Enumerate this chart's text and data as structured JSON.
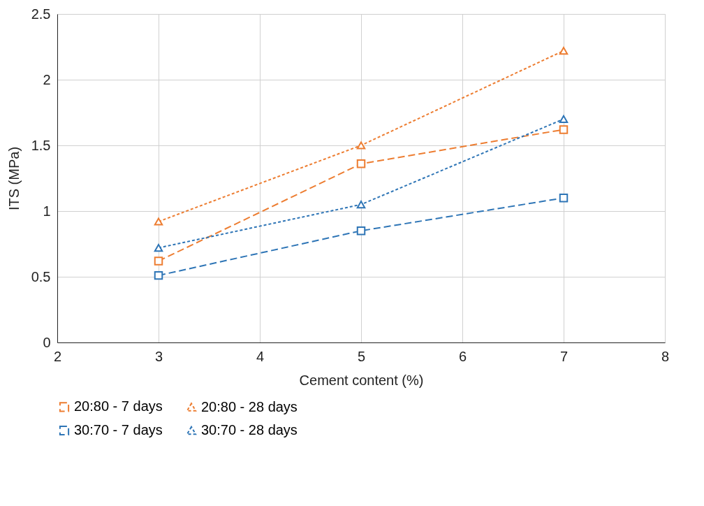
{
  "chart_data": {
    "type": "line",
    "xlabel": "Cement content (%)",
    "ylabel": "ITS (MPa)",
    "xlim": [
      2,
      8
    ],
    "xticks": [
      2,
      3,
      4,
      5,
      6,
      7,
      8
    ],
    "ylim": [
      0,
      2.5
    ],
    "yticks": [
      0,
      0.5,
      1,
      1.5,
      2,
      2.5
    ],
    "grid": true,
    "legend": "bottom",
    "series": [
      {
        "name": "20:80 - 7 days",
        "color": "#ed7d31",
        "x": [
          3,
          5,
          7
        ],
        "values": [
          0.62,
          1.36,
          1.62
        ],
        "marker": "square",
        "line_style": "dashed"
      },
      {
        "name": "20:80 - 28 days",
        "color": "#ed7d31",
        "x": [
          3,
          5,
          7
        ],
        "values": [
          0.92,
          1.5,
          2.22
        ],
        "marker": "triangle",
        "line_style": "dotted"
      },
      {
        "name": "30:70 - 7 days",
        "color": "#2e75b6",
        "x": [
          3,
          5,
          7
        ],
        "values": [
          0.51,
          0.85,
          1.1
        ],
        "marker": "square",
        "line_style": "dashed"
      },
      {
        "name": "30:70 - 28 days",
        "color": "#2e75b6",
        "x": [
          3,
          5,
          7
        ],
        "values": [
          0.72,
          1.05,
          1.7
        ],
        "marker": "triangle",
        "line_style": "dotted"
      }
    ]
  }
}
